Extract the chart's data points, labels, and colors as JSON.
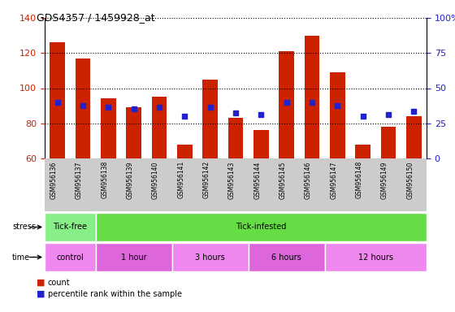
{
  "title": "GDS4357 / 1459928_at",
  "samples": [
    "GSM956136",
    "GSM956137",
    "GSM956138",
    "GSM956139",
    "GSM956140",
    "GSM956141",
    "GSM956142",
    "GSM956143",
    "GSM956144",
    "GSM956145",
    "GSM956146",
    "GSM956147",
    "GSM956148",
    "GSM956149",
    "GSM956150"
  ],
  "counts": [
    126,
    117,
    94,
    89,
    95,
    68,
    105,
    83,
    76,
    121,
    130,
    109,
    68,
    78,
    84
  ],
  "percentile_left_vals": [
    92,
    90,
    89,
    88,
    89,
    84,
    89,
    86,
    85,
    92,
    92,
    90,
    84,
    85,
    87
  ],
  "ylim_left": [
    60,
    140
  ],
  "ylim_right": [
    0,
    100
  ],
  "yticks_left": [
    60,
    80,
    100,
    120,
    140
  ],
  "yticks_right": [
    0,
    25,
    50,
    75,
    100
  ],
  "bar_color": "#CC2200",
  "dot_color": "#2222CC",
  "plot_bg": "#FFFFFF",
  "stress_groups": [
    {
      "label": "Tick-free",
      "start": 0,
      "end": 2,
      "color": "#88EE88"
    },
    {
      "label": "Tick-infested",
      "start": 2,
      "end": 15,
      "color": "#66DD44"
    }
  ],
  "time_groups": [
    {
      "label": "control",
      "start": 0,
      "end": 2,
      "color": "#EE88EE"
    },
    {
      "label": "1 hour",
      "start": 2,
      "end": 5,
      "color": "#DD66DD"
    },
    {
      "label": "3 hours",
      "start": 5,
      "end": 8,
      "color": "#EE88EE"
    },
    {
      "label": "6 hours",
      "start": 8,
      "end": 11,
      "color": "#DD66DD"
    },
    {
      "label": "12 hours",
      "start": 11,
      "end": 15,
      "color": "#EE88EE"
    }
  ],
  "tick_label_color_left": "#CC2200",
  "tick_label_color_right": "#2222CC",
  "xlabel_bg": "#CCCCCC"
}
